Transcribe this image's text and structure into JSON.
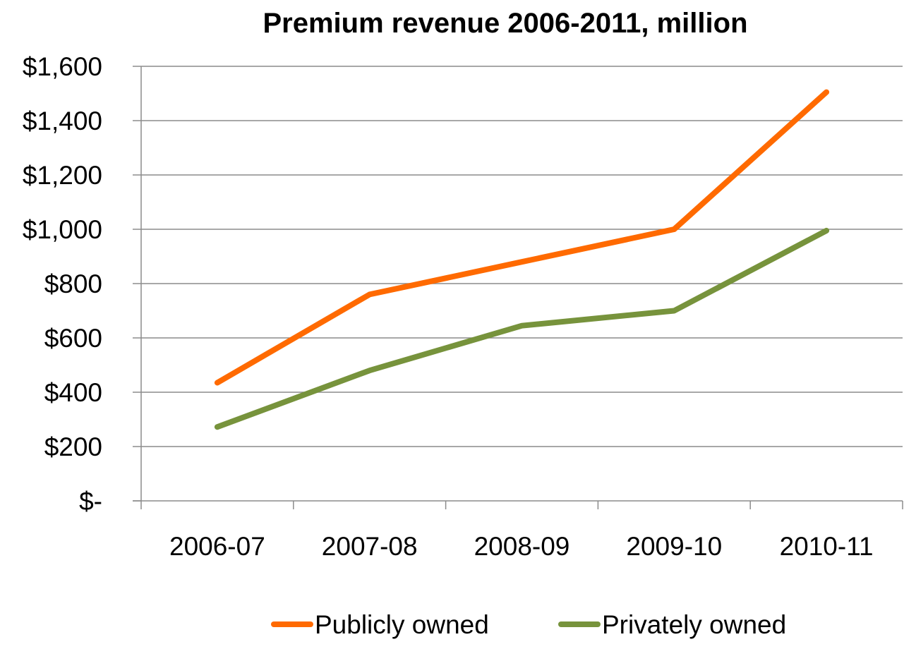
{
  "chart_data": {
    "type": "line",
    "title": "Premium revenue 2006-2011, million",
    "xlabel": "",
    "ylabel": "",
    "categories": [
      "2006-07",
      "2007-08",
      "2008-09",
      "2009-10",
      "2010-11"
    ],
    "series": [
      {
        "name": "Publicly owned",
        "color": "#FF6A00",
        "values": [
          435,
          760,
          880,
          1000,
          1505
        ]
      },
      {
        "name": "Privately owned",
        "color": "#77933C",
        "values": [
          272,
          480,
          645,
          700,
          995
        ]
      }
    ],
    "ylim": [
      0,
      1600
    ],
    "yticks": [
      {
        "value": 1600,
        "label": "$1,600"
      },
      {
        "value": 1400,
        "label": "$1,400"
      },
      {
        "value": 1200,
        "label": "$1,200"
      },
      {
        "value": 1000,
        "label": "$1,000"
      },
      {
        "value": 800,
        "label": "$800"
      },
      {
        "value": 600,
        "label": "$600"
      },
      {
        "value": 400,
        "label": "$400"
      },
      {
        "value": 200,
        "label": "$200"
      },
      {
        "value": 0,
        "label": "$-"
      }
    ],
    "grid": true,
    "legend_position": "bottom"
  }
}
